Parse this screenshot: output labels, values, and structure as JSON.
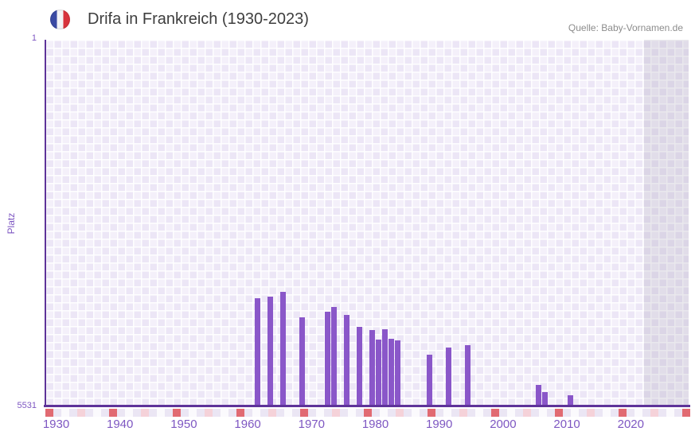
{
  "header": {
    "title": "Drifa in Frankreich (1930-2023)",
    "flag": "france-flag-icon",
    "source": "Quelle: Baby-Vornamen.de"
  },
  "colors": {
    "bar": "#8a57c9",
    "axis_line": "#5e3399",
    "tick_label": "#7e57c2",
    "title_text": "#3e3e3e",
    "source_text": "#8c8c8c",
    "checker_light": "#f4f0fa",
    "checker_dark": "#ece6f6",
    "future_band": "rgba(160,155,175,0.22)",
    "marker_red": "#e16a72",
    "marker_pink": "#f5d2d9",
    "flag_blue": "#3a4aa3",
    "flag_red": "#d8333c"
  },
  "chart_data": {
    "type": "bar",
    "title": "Drifa in Frankreich (1930-2023)",
    "xlabel": "",
    "ylabel": "Platz",
    "y_axis": {
      "top_tick_label": "1",
      "bottom_tick_label": "5531",
      "min": 1,
      "max": 5531,
      "inverted": true,
      "note": "rank 1 is best (top), 5531 worst (bottom); bar length grows toward better rank"
    },
    "x_ticks": [
      "1930",
      "1940",
      "1950",
      "1960",
      "1970",
      "1980",
      "1990",
      "2000",
      "2010",
      "2020"
    ],
    "x_range_years": [
      1930,
      2023
    ],
    "grid": true,
    "legend": false,
    "points": [
      {
        "year": 1961,
        "rank": 3910
      },
      {
        "year": 1963,
        "rank": 3895
      },
      {
        "year": 1965,
        "rank": 3825
      },
      {
        "year": 1968,
        "rank": 4210
      },
      {
        "year": 1972,
        "rank": 4125
      },
      {
        "year": 1973,
        "rank": 4045
      },
      {
        "year": 1975,
        "rank": 4170
      },
      {
        "year": 1977,
        "rank": 4345
      },
      {
        "year": 1979,
        "rank": 4400
      },
      {
        "year": 1980,
        "rank": 4540
      },
      {
        "year": 1981,
        "rank": 4385
      },
      {
        "year": 1982,
        "rank": 4525
      },
      {
        "year": 1983,
        "rank": 4560
      },
      {
        "year": 1988,
        "rank": 4770
      },
      {
        "year": 1991,
        "rank": 4665
      },
      {
        "year": 1994,
        "rank": 4630
      },
      {
        "year": 2005,
        "rank": 5230
      },
      {
        "year": 2006,
        "rank": 5340
      },
      {
        "year": 2010,
        "rank": 5385
      }
    ]
  },
  "bottom_strip": {
    "cell_count": 81,
    "red_every": 8,
    "red_offset": 0,
    "pink_every": 8,
    "pink_offset": 4
  }
}
